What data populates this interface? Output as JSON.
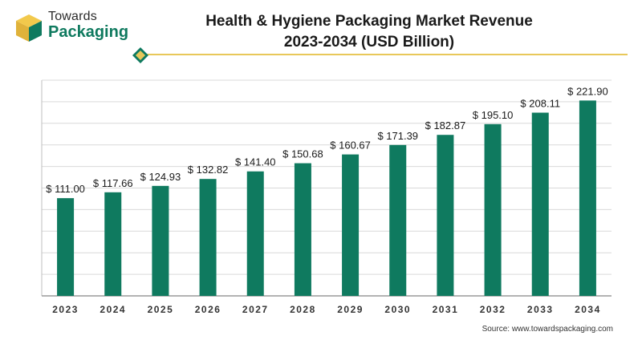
{
  "logo": {
    "line1": "Towards",
    "line2": "Packaging"
  },
  "title": {
    "line1": "Health & Hygiene Packaging Market Revenue",
    "line2": "2023-2034 (USD Billion)"
  },
  "source": "Source: www.towardspackaging.com",
  "colors": {
    "bar": "#0f7a5f",
    "accent": "#e8c85a",
    "grid": "#d9d9d9"
  },
  "chart_data": {
    "type": "bar",
    "categories": [
      "2023",
      "2024",
      "2025",
      "2026",
      "2027",
      "2028",
      "2029",
      "2030",
      "2031",
      "2032",
      "2033",
      "2034"
    ],
    "values": [
      111.0,
      117.66,
      124.93,
      132.82,
      141.4,
      150.68,
      160.67,
      171.39,
      182.87,
      195.1,
      208.11,
      221.9
    ],
    "value_labels": [
      "$ 111.00",
      "$ 117.66",
      "$ 124.93",
      "$ 132.82",
      "$ 141.40",
      "$ 150.68",
      "$ 160.67",
      "$ 171.39",
      "$ 182.87",
      "$ 195.10",
      "$ 208.11",
      "$ 221.90"
    ],
    "title": "Health & Hygiene Packaging Market Revenue 2023-2034 (USD Billion)",
    "xlabel": "",
    "ylabel": "",
    "ylim": [
      0,
      245
    ],
    "grid": true,
    "legend": "none"
  }
}
